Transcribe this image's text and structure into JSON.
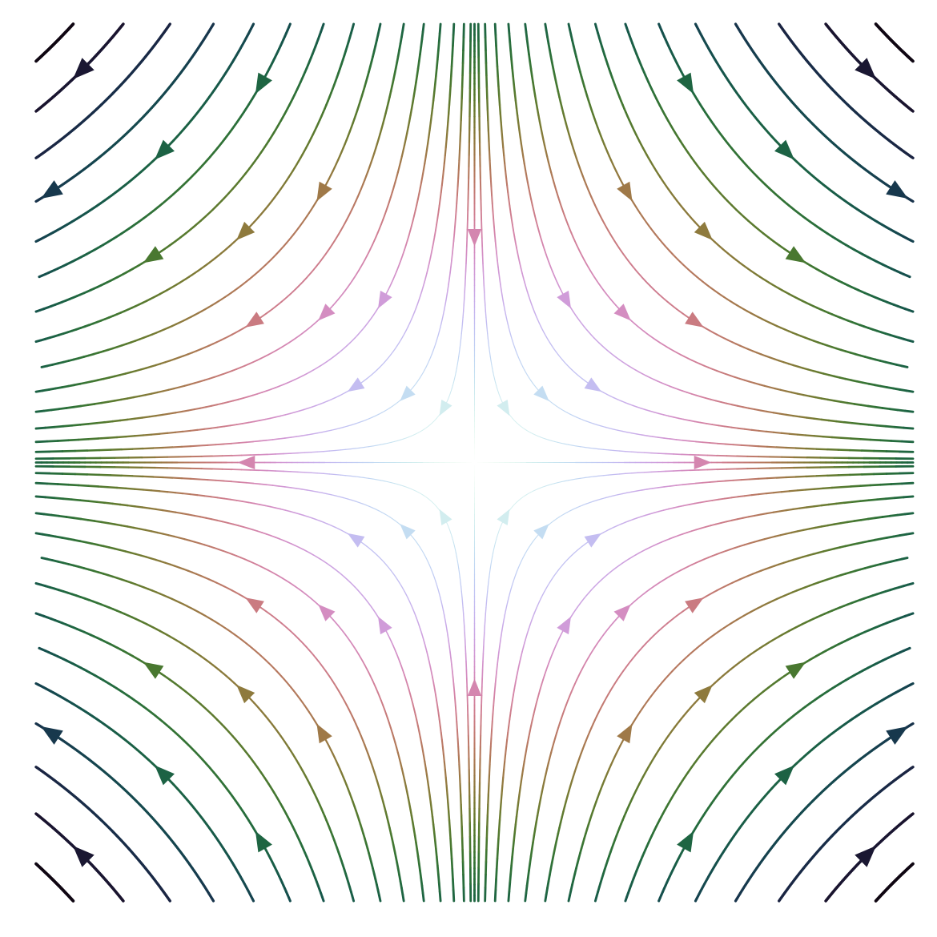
{
  "chart_data": {
    "type": "streamplot",
    "field": {
      "u": [
        1,
        0
      ],
      "v": [
        0,
        -1
      ]
    },
    "xlim": [
      -3,
      3
    ],
    "ylim": [
      -3,
      3
    ],
    "colormap": "cubehelix_r"
  }
}
